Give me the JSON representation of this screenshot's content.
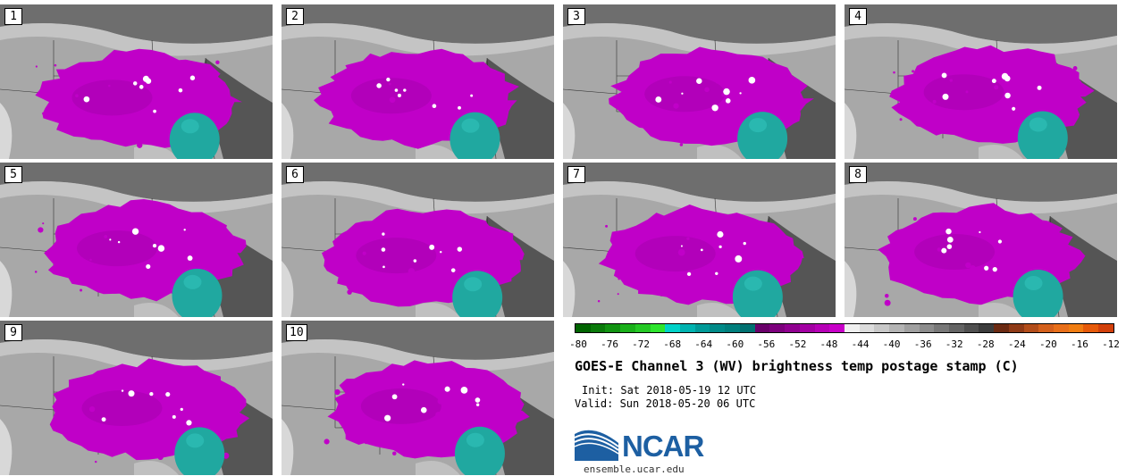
{
  "panels": [
    {
      "label": "1"
    },
    {
      "label": "2"
    },
    {
      "label": "3"
    },
    {
      "label": "4"
    },
    {
      "label": "5"
    },
    {
      "label": "6"
    },
    {
      "label": "7"
    },
    {
      "label": "8"
    },
    {
      "label": "9"
    },
    {
      "label": "10"
    }
  ],
  "colorbar": {
    "colors": [
      "#006400",
      "#0a7a0a",
      "#119311",
      "#1ab01a",
      "#25c925",
      "#2ee52e",
      "#00d2c8",
      "#00b3b0",
      "#009a98",
      "#008a88",
      "#007f7d",
      "#007070",
      "#6a006a",
      "#7d007d",
      "#900090",
      "#a300a3",
      "#b600b6",
      "#c800c8",
      "#f0f0f0",
      "#dcdcdc",
      "#c8c8c8",
      "#b4b4b4",
      "#a0a0a0",
      "#8c8c8c",
      "#787878",
      "#646464",
      "#505050",
      "#3c3c3c",
      "#6b2a12",
      "#8f3a16",
      "#b34d1a",
      "#d4601c",
      "#e86f1a",
      "#f07d12",
      "#e65a0a",
      "#d2400a"
    ],
    "tick_labels": [
      "-80",
      "-76",
      "-72",
      "-68",
      "-64",
      "-60",
      "-56",
      "-52",
      "-48",
      "-44",
      "-40",
      "-36",
      "-32",
      "-28",
      "-24",
      "-20",
      "-16",
      "-12"
    ]
  },
  "title": "GOES-E Channel 3 (WV) brightness temp postage stamp (C)",
  "init": "Init: Sat 2018-05-19 12 UTC",
  "valid": "Valid: Sun 2018-05-20 06 UTC",
  "logo": {
    "name": "NCAR",
    "url": "ensemble.ucar.edu"
  }
}
